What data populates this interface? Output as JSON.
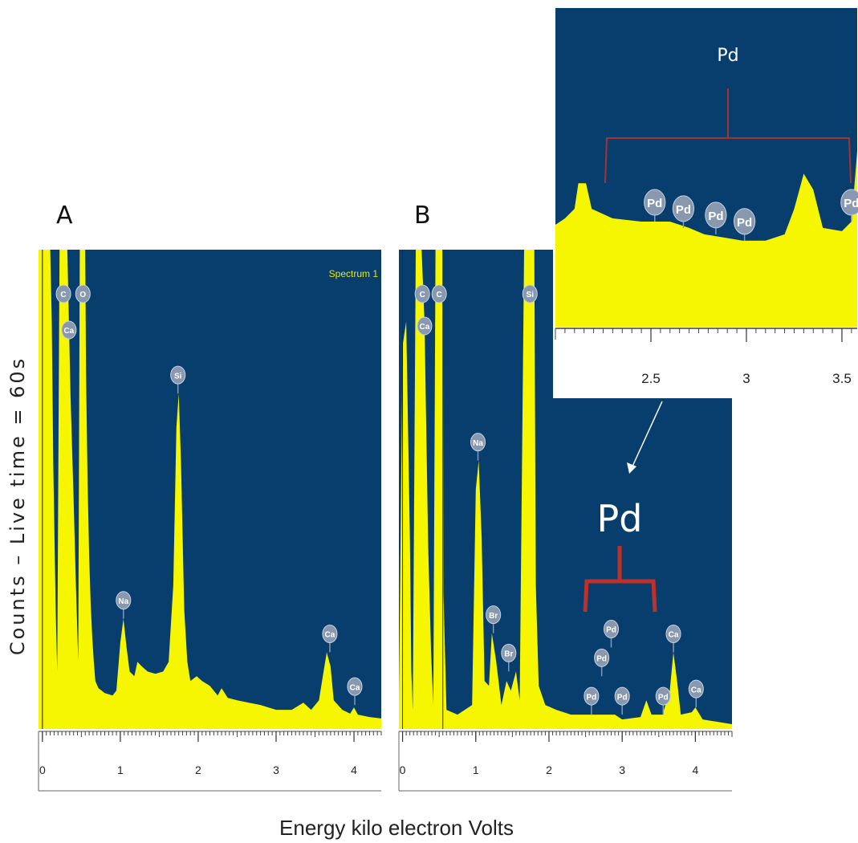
{
  "colors": {
    "plot_bg": "#073e6e",
    "spectrum": "#f6f600",
    "bracket": "#c0302a",
    "marker": "#8898ae"
  },
  "figure": {
    "ylabel": "Counts – Live time = 60s",
    "xlabel": "Energy kilo electron Volts"
  },
  "chart_data": [
    {
      "id": "A",
      "type": "area",
      "panel_label": "A",
      "legend": "Spectrum 1",
      "xlim": [
        -0.05,
        4.35
      ],
      "ylim": [
        0,
        100
      ],
      "x_ticks": [
        "0",
        "1",
        "2",
        "3",
        "4"
      ],
      "x_tick_values": [
        0,
        1,
        2,
        3,
        4
      ],
      "spectrum": [
        [
          -0.05,
          100
        ],
        [
          0.0,
          100
        ],
        [
          0.0,
          100
        ],
        [
          0.05,
          100
        ],
        [
          0.1,
          100
        ],
        [
          0.12,
          85
        ],
        [
          0.14,
          55
        ],
        [
          0.17,
          25
        ],
        [
          0.19,
          12
        ],
        [
          0.22,
          100
        ],
        [
          0.26,
          100
        ],
        [
          0.29,
          100
        ],
        [
          0.32,
          100
        ],
        [
          0.36,
          70
        ],
        [
          0.4,
          48
        ],
        [
          0.43,
          30
        ],
        [
          0.46,
          14
        ],
        [
          0.48,
          100
        ],
        [
          0.55,
          100
        ],
        [
          0.56,
          74
        ],
        [
          0.58,
          52
        ],
        [
          0.6,
          36
        ],
        [
          0.62,
          26
        ],
        [
          0.64,
          19
        ],
        [
          0.66,
          14
        ],
        [
          0.68,
          10
        ],
        [
          0.72,
          8.5
        ],
        [
          0.8,
          7.5
        ],
        [
          0.9,
          7
        ],
        [
          0.95,
          8
        ],
        [
          1.0,
          18
        ],
        [
          1.04,
          23
        ],
        [
          1.08,
          17
        ],
        [
          1.12,
          12
        ],
        [
          1.18,
          11
        ],
        [
          1.22,
          14
        ],
        [
          1.28,
          13
        ],
        [
          1.35,
          12
        ],
        [
          1.45,
          11.5
        ],
        [
          1.55,
          12
        ],
        [
          1.62,
          14
        ],
        [
          1.68,
          30
        ],
        [
          1.72,
          63
        ],
        [
          1.75,
          70
        ],
        [
          1.78,
          55
        ],
        [
          1.82,
          25
        ],
        [
          1.86,
          14
        ],
        [
          1.9,
          10
        ],
        [
          1.98,
          11
        ],
        [
          2.05,
          10
        ],
        [
          2.15,
          9
        ],
        [
          2.25,
          7
        ],
        [
          2.3,
          8.5
        ],
        [
          2.38,
          6.5
        ],
        [
          2.5,
          6
        ],
        [
          2.65,
          5.5
        ],
        [
          2.8,
          5
        ],
        [
          3.0,
          4
        ],
        [
          3.2,
          4
        ],
        [
          3.35,
          5.5
        ],
        [
          3.45,
          4
        ],
        [
          3.55,
          6
        ],
        [
          3.6,
          11
        ],
        [
          3.65,
          16
        ],
        [
          3.7,
          13
        ],
        [
          3.74,
          6
        ],
        [
          3.85,
          4
        ],
        [
          3.95,
          3.2
        ],
        [
          4.0,
          4.5
        ],
        [
          4.05,
          3
        ],
        [
          4.2,
          2.5
        ],
        [
          4.35,
          2.2
        ]
      ],
      "peaks": [
        {
          "label": "C",
          "x": 0.27,
          "y": 100
        },
        {
          "label": "Ca",
          "x": 0.34,
          "y": 100
        },
        {
          "label": "O",
          "x": 0.52,
          "y": 100
        },
        {
          "label": "Na",
          "x": 1.04,
          "y": 23
        },
        {
          "label": "Si",
          "x": 1.74,
          "y": 70
        },
        {
          "label": "Ca",
          "x": 3.69,
          "y": 16
        },
        {
          "label": "Ca",
          "x": 4.01,
          "y": 5
        }
      ]
    },
    {
      "id": "B",
      "type": "area",
      "panel_label": "B",
      "xlim": [
        -0.05,
        4.5
      ],
      "ylim": [
        0,
        100
      ],
      "x_ticks": [
        "0",
        "1",
        "2",
        "3",
        "4"
      ],
      "x_tick_values": [
        0,
        1,
        2,
        3,
        4
      ],
      "bracket_label": "Pd",
      "spectrum": [
        [
          -0.05,
          6
        ],
        [
          0.0,
          80
        ],
        [
          0.05,
          85
        ],
        [
          0.1,
          40
        ],
        [
          0.12,
          12
        ],
        [
          0.14,
          4
        ],
        [
          0.18,
          100
        ],
        [
          0.22,
          100
        ],
        [
          0.26,
          100
        ],
        [
          0.3,
          85
        ],
        [
          0.35,
          38
        ],
        [
          0.39,
          16
        ],
        [
          0.42,
          5
        ],
        [
          0.45,
          100
        ],
        [
          0.55,
          100
        ],
        [
          0.56,
          28
        ],
        [
          0.6,
          4
        ],
        [
          0.75,
          3
        ],
        [
          0.85,
          4
        ],
        [
          0.95,
          5
        ],
        [
          1.0,
          50
        ],
        [
          1.04,
          56
        ],
        [
          1.08,
          40
        ],
        [
          1.12,
          10
        ],
        [
          1.18,
          9
        ],
        [
          1.22,
          20
        ],
        [
          1.28,
          14
        ],
        [
          1.35,
          5
        ],
        [
          1.42,
          10
        ],
        [
          1.48,
          8
        ],
        [
          1.55,
          12
        ],
        [
          1.6,
          6
        ],
        [
          1.66,
          100
        ],
        [
          1.8,
          100
        ],
        [
          1.82,
          30
        ],
        [
          1.86,
          9
        ],
        [
          1.95,
          5
        ],
        [
          2.1,
          4
        ],
        [
          2.3,
          3
        ],
        [
          2.5,
          3
        ],
        [
          2.7,
          3
        ],
        [
          2.9,
          3
        ],
        [
          3.0,
          2
        ],
        [
          3.25,
          2.5
        ],
        [
          3.33,
          6
        ],
        [
          3.4,
          3
        ],
        [
          3.55,
          3
        ],
        [
          3.65,
          8
        ],
        [
          3.7,
          16
        ],
        [
          3.75,
          10
        ],
        [
          3.8,
          3
        ],
        [
          3.95,
          3.5
        ],
        [
          4.0,
          4.5
        ],
        [
          4.1,
          2
        ],
        [
          4.5,
          1
        ]
      ],
      "peaks": [
        {
          "label": "C",
          "x": 0.27,
          "y": 100
        },
        {
          "label": "Ca",
          "x": 0.3,
          "y": 100
        },
        {
          "label": "C",
          "x": 0.5,
          "y": 100
        },
        {
          "label": "Si",
          "x": 1.74,
          "y": 100
        },
        {
          "label": "Na",
          "x": 1.03,
          "y": 56
        },
        {
          "label": "Br",
          "x": 1.24,
          "y": 20
        },
        {
          "label": "Br",
          "x": 1.45,
          "y": 12
        },
        {
          "label": "Pd",
          "x": 2.58,
          "y": 3
        },
        {
          "label": "Pd",
          "x": 2.72,
          "y": 11
        },
        {
          "label": "Pd",
          "x": 2.85,
          "y": 17
        },
        {
          "label": "Pd",
          "x": 3.0,
          "y": 3
        },
        {
          "label": "Pd",
          "x": 3.56,
          "y": 3
        },
        {
          "label": "Ca",
          "x": 3.7,
          "y": 16
        },
        {
          "label": "Ca",
          "x": 4.01,
          "y": 4.5
        }
      ]
    },
    {
      "id": "inset",
      "type": "area",
      "xlim": [
        2.0,
        3.58
      ],
      "ylim": [
        0,
        100
      ],
      "x_ticks": [
        "2.5",
        "3",
        "3.5"
      ],
      "x_tick_values": [
        2.5,
        3.0,
        3.5
      ],
      "bracket_label": "Pd",
      "spectrum": [
        [
          2.0,
          32
        ],
        [
          2.05,
          34
        ],
        [
          2.1,
          37
        ],
        [
          2.12,
          45
        ],
        [
          2.16,
          45
        ],
        [
          2.19,
          37
        ],
        [
          2.3,
          34
        ],
        [
          2.45,
          33
        ],
        [
          2.6,
          33
        ],
        [
          2.7,
          31
        ],
        [
          2.78,
          29
        ],
        [
          2.88,
          28
        ],
        [
          2.98,
          27
        ],
        [
          3.1,
          27
        ],
        [
          3.2,
          29
        ],
        [
          3.25,
          37
        ],
        [
          3.3,
          48
        ],
        [
          3.35,
          43
        ],
        [
          3.4,
          31
        ],
        [
          3.5,
          30
        ],
        [
          3.55,
          33
        ],
        [
          3.58,
          55
        ]
      ],
      "peaks": [
        {
          "label": "Pd",
          "x": 2.52,
          "y": 33
        },
        {
          "label": "Pd",
          "x": 2.67,
          "y": 31
        },
        {
          "label": "Pd",
          "x": 2.84,
          "y": 29
        },
        {
          "label": "Pd",
          "x": 2.99,
          "y": 27
        },
        {
          "label": "Pd",
          "x": 3.55,
          "y": 33
        }
      ]
    }
  ]
}
